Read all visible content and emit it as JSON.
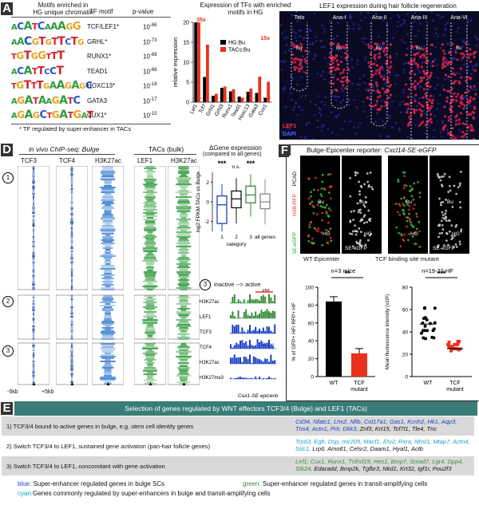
{
  "panelA": {
    "letter": "A",
    "header_motifs": "Motifs enriched in",
    "header_motifs2": "HG unique chromatin",
    "header_tf": "TF motif",
    "header_p": "p-value",
    "footnote": "* TF regulated by super-enhancer in TACs",
    "rows": [
      {
        "logo": "ACATCAAAGG",
        "tf": "TCF/LEF1*",
        "p": "10-86"
      },
      {
        "logo": "AACGTGTTCTG",
        "tf": "GRHL*",
        "p": "10-73"
      },
      {
        "logo": "TGTGGTTT",
        "tf": "RUNX1*",
        "p": "10-68"
      },
      {
        "logo": "ACATTCCT",
        "tf": "TEAD1",
        "p": "10-66"
      },
      {
        "logo": "TGTTTGAAGAGC",
        "tf": "HOXC13*",
        "p": "10-18"
      },
      {
        "logo": "AGATAAGATC",
        "tf": "GATA3",
        "p": "10-17"
      },
      {
        "logo": "AGAGCTGATGAT",
        "tf": "CUX1*",
        "p": "10-15"
      }
    ]
  },
  "chart_data": {
    "type": "bar",
    "title": "Expression of TFs with enriched motifs in HG",
    "ylabel": "relative expression",
    "ylim": [
      0,
      20
    ],
    "yticks": [
      0,
      5,
      10,
      15,
      20
    ],
    "categories": [
      "Lef1",
      "Tcf7",
      "Grhl1",
      "Grhl3",
      "Runx1",
      "Tead1",
      "Hoxc13",
      "Gata3",
      "Cux1"
    ],
    "series": [
      {
        "name": "HG:Bu",
        "color": "#000000",
        "values": [
          20,
          6.3,
          1.6,
          3.6,
          2.7,
          1.4,
          2.6,
          2.3,
          1.1
        ]
      },
      {
        "name": "TACs:Bu",
        "color": "#e8321e",
        "values": [
          20,
          14.4,
          2.1,
          3.9,
          3.2,
          1.1,
          3.4,
          6.4,
          5.1
        ]
      }
    ],
    "annotations": [
      "35x",
      "15x"
    ],
    "legend": "top-right"
  },
  "panelB": {
    "title": "LEF1 expression during hair follicle regeneration",
    "stages": [
      "Telo",
      "Ana-I",
      "Ana-II",
      "Ana-III",
      "Ana-VI"
    ],
    "labels": {
      "bu": "Bu",
      "hg": "HG",
      "dp": "DP",
      "tacs": "TACs"
    },
    "legend_lef1": "LEF1",
    "legend_dapi": "DAPI"
  },
  "panelD": {
    "letter": "D",
    "title_invivo": "in vivo ChIP-seq: Bulge",
    "title_tacs": "TACs (bulk)",
    "cols": [
      "TCF3",
      "TCF4",
      "H3K27ac",
      "LEF1",
      "H3K27ac"
    ],
    "clusters": [
      "1",
      "2",
      "3"
    ],
    "xaxis_left": "-5kb",
    "xaxis_right": "+5kb",
    "delta_title": "ΔGene expression",
    "delta_sub": "(compared to all genes)",
    "stars1": "***",
    "ns": "n.s.",
    "stars3": "***",
    "box_ylabel": "log2 FPKM TACs vs Bulge",
    "box_ticks": [
      "2",
      "0",
      "-2"
    ],
    "box_cats": [
      "1",
      "2",
      "3",
      "all genes"
    ],
    "box_xlabel": "category",
    "tracks_title": "inactive --> active",
    "tracks_scale": "1kb",
    "tracks": [
      "H3K27ac",
      "LEF1",
      "TCF3",
      "TCF4",
      "H3K27ac",
      "H3K27me3"
    ],
    "track_tag_tacs": "TACs",
    "track_tag_bulge": "Bulge",
    "tracks_footer": "Cux1-SE epicenter"
  },
  "panelF": {
    "letter": "F",
    "title_prefix": "Bulge-Epicenter reporter: ",
    "title_gene": "Cxcl14-SE-eGFP",
    "side_pcad": "PCAD",
    "side_h2b": "H2B-RFP",
    "side_se": "SE-eGFP",
    "img_labels": [
      "WT Epicenter",
      "TCF binding site mutant"
    ],
    "img_tag": "SE-eGFP",
    "bar1": {
      "n": "n=3 mice",
      "stars": "**",
      "ylabel": "% of GFP+ HF/ RFP+ HF",
      "yticks": [
        "100",
        "80",
        "60",
        "40",
        "20",
        "0"
      ],
      "cats": [
        "WT",
        "TCF mutant"
      ],
      "values": [
        84,
        26
      ]
    },
    "bar2": {
      "n": "n=19-22 HF",
      "stars": "***",
      "ylabel": "Mean fluorescence intensity (x10³)",
      "yticks": [
        "80",
        "60",
        "40",
        "20",
        "0"
      ],
      "cats": [
        "WT",
        "TCF mutant"
      ],
      "values": [
        47,
        25
      ]
    }
  },
  "panelE": {
    "letter": "E",
    "title": "Selection of genes regulated by WNT effectors TCF3/4 (Bulge) and LEF1 (TACs)",
    "rows": [
      {
        "label": "1) TCF3/4 bound to active genes in bulge, e.g. stem cell identity genes",
        "genes_blue": "Cd34, Nfatc1, Lhx2, Nfib, Col17a1, Gas1, Kcnh2, Hk1, Aqp3, Tns4, Actn1, Prlr, Dkk3,",
        "genes_black": "Znf3, Krt15, Tcf7l1, Tle4, Tnc"
      },
      {
        "label": "2) Switch TCF3/4 to LEF1, sustained gene activation (pan-hair follicle genes)",
        "genes_blue": "Trp63, Egfr, Dsp, mir205, Macf1, Etv2, Rxra, Nhsl1, Mtap7, Actn4, Sdc1,",
        "genes_black": "Lrp6, Amotl1, Celsr2, Daam1, Hyal1, Actb"
      },
      {
        "label": "3) Switch TCF3/4 to LEF1, concomitant with gene activation",
        "genes_blue": "Lef1, Cux1, Runx1, Tnfrsf19, Hes1, Bmp7, Smad7, Lgr4, Dpp4, Stk24,",
        "genes_black": "Edaradd, Bmp2k, Tgfbr3, Nkd1, Krt32, Igf1r, Pou2f3"
      }
    ],
    "legend_blue_key": "blue:",
    "legend_blue": " Super-enhancer regulated genes in bulge SCs",
    "legend_green_key": "green:",
    "legend_green": " Super-enhancer regulated genes in transit-amplifying cells",
    "legend_cyan_key": "cyan:",
    "legend_cyan": "Genes commonly regulated by super-enhancers in bulge and transit-amplifying cells"
  }
}
